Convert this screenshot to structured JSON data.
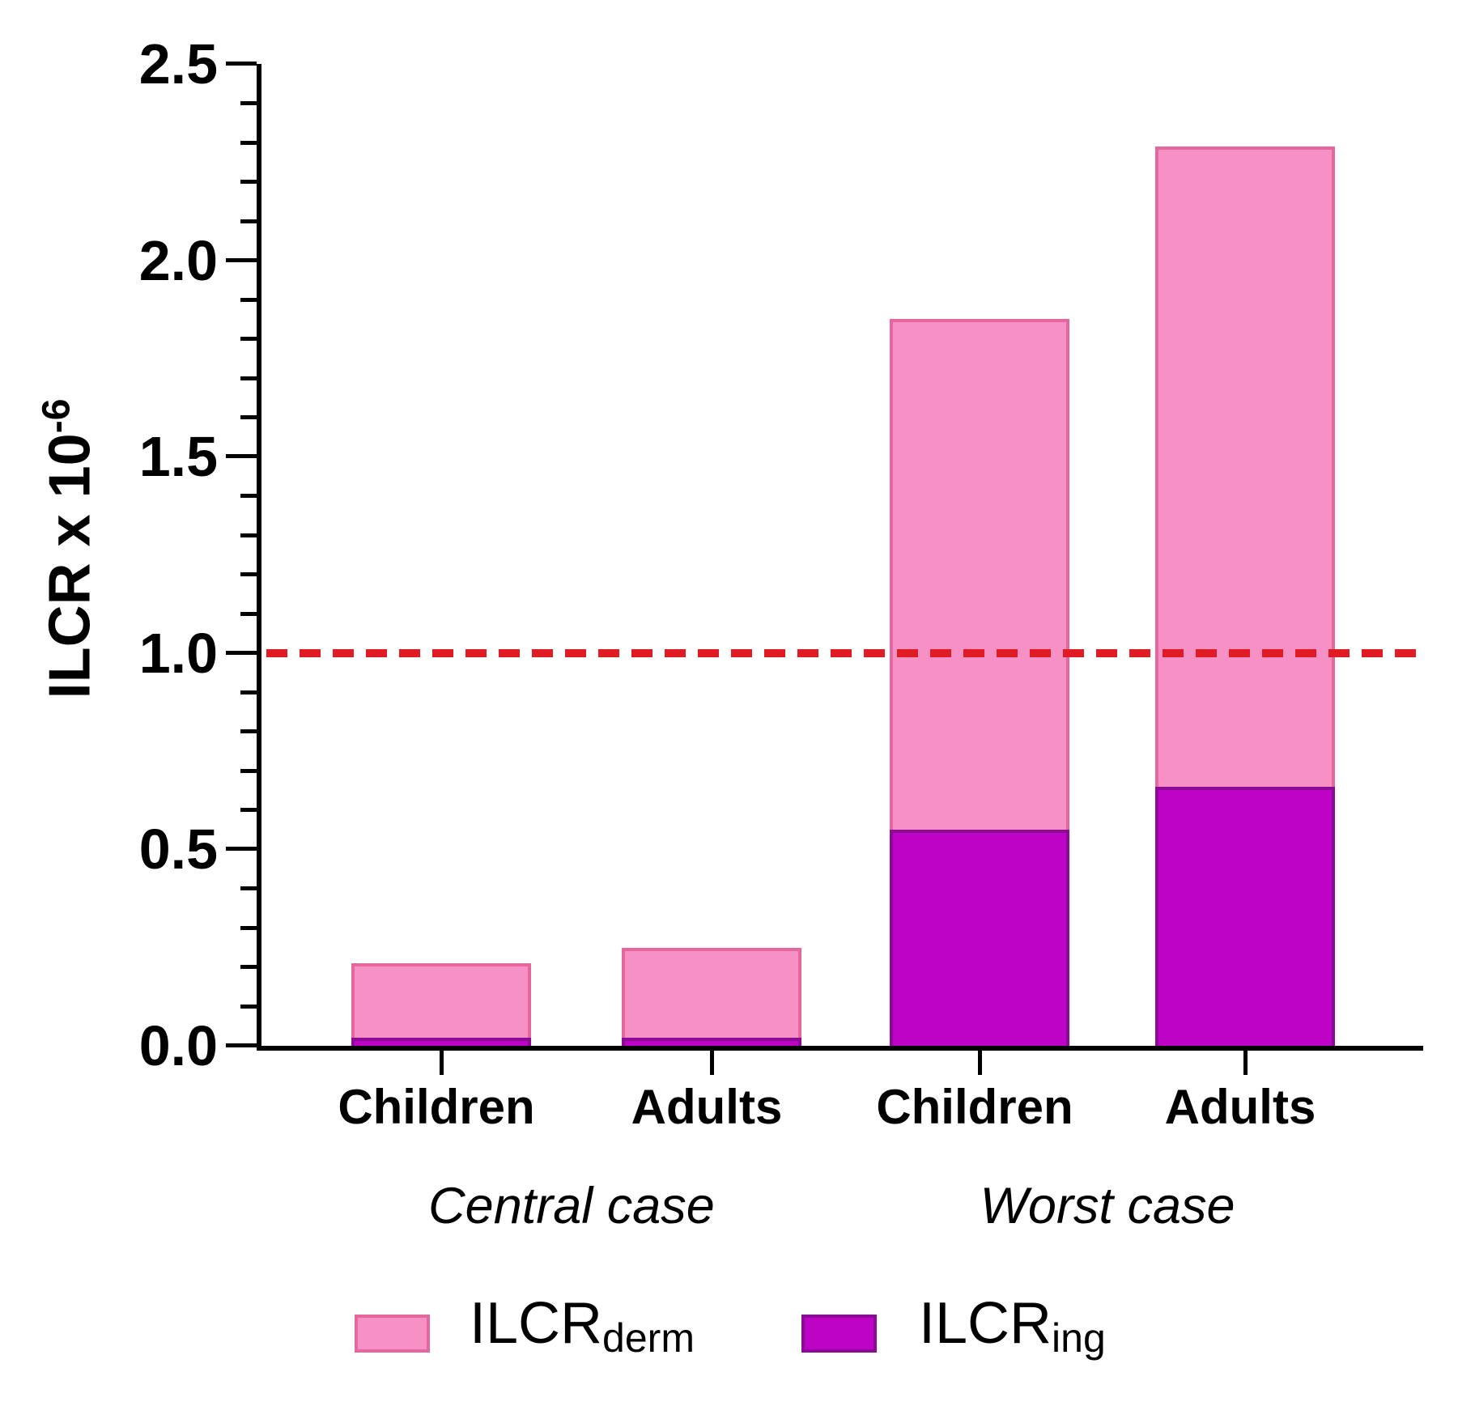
{
  "y_axis": {
    "title": "ILCR x 10",
    "title_exponent": "-6",
    "tick_labels": [
      "0.0",
      "0.5",
      "1.0",
      "1.5",
      "2.0",
      "2.5"
    ]
  },
  "x_axis": {
    "category_labels": [
      "Children",
      "Adults",
      "Children",
      "Adults"
    ],
    "group_labels": [
      "Central case",
      "Worst case"
    ]
  },
  "legend": {
    "items": [
      {
        "text": "ILCR",
        "sub": "derm",
        "fill": "#f791c5",
        "border": "#e4679e"
      },
      {
        "text": "ILCR",
        "sub": "ing",
        "fill": "#be02c6",
        "border": "#8b0a96"
      }
    ]
  },
  "chart_data": {
    "type": "bar",
    "stacked": true,
    "ylabel": "ILCR x 10^-6",
    "ylim": [
      0,
      2.5
    ],
    "y_major_step": 0.5,
    "y_minor_step": 0.1,
    "grid": false,
    "legend_position": "bottom",
    "groups": [
      "Central case",
      "Worst case"
    ],
    "categories": [
      "Central case - Children",
      "Central case - Adults",
      "Worst case - Children",
      "Worst case - Adults"
    ],
    "series": [
      {
        "name": "ILCR_ing",
        "color": "#be02c6",
        "border": "#8b0a96",
        "values": [
          0.02,
          0.02,
          0.55,
          0.66
        ]
      },
      {
        "name": "ILCR_derm",
        "color": "#f791c5",
        "border": "#e4679e",
        "values": [
          0.19,
          0.23,
          1.3,
          1.63
        ]
      }
    ],
    "stack_totals": [
      0.21,
      0.25,
      1.85,
      2.29
    ],
    "threshold_line": {
      "value": 1.0,
      "color": "#e01b24",
      "style": "dashed"
    }
  }
}
